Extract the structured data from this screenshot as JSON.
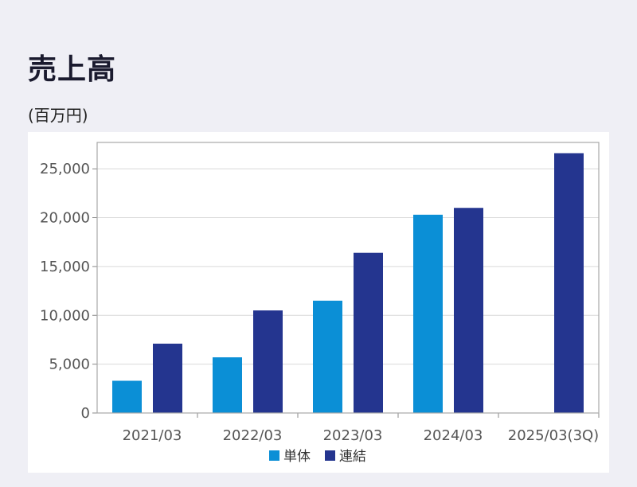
{
  "page": {
    "title": "売上高",
    "unit": "(百万円)"
  },
  "chart_data": {
    "type": "bar",
    "categories": [
      "2021/03",
      "2022/03",
      "2023/03",
      "2024/03",
      "2025/03(3Q)"
    ],
    "series": [
      {
        "name": "単体",
        "color": "#0b8fd6",
        "values": [
          3300,
          5700,
          11500,
          20300,
          null
        ]
      },
      {
        "name": "連結",
        "color": "#24358f",
        "values": [
          7100,
          10500,
          16400,
          21000,
          26600
        ]
      }
    ],
    "yticks": [
      "0",
      "5,000",
      "10,000",
      "15,000",
      "20,000",
      "25,000"
    ],
    "ylim": [
      0,
      25000
    ],
    "grid": true,
    "legend": "bottom"
  }
}
